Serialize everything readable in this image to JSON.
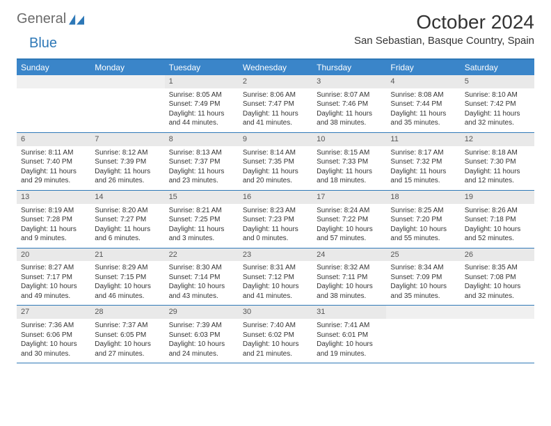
{
  "brand": {
    "word1": "General",
    "word2": "Blue"
  },
  "title": "October 2024",
  "location": "San Sebastian, Basque Country, Spain",
  "colors": {
    "header_bar": "#3a85c9",
    "border": "#2e78b7",
    "daynum_bg": "#e9e9e9",
    "text": "#333333",
    "logo_gray": "#6a6a6a",
    "logo_blue": "#2e78b7",
    "background": "#ffffff"
  },
  "weekdays": [
    "Sunday",
    "Monday",
    "Tuesday",
    "Wednesday",
    "Thursday",
    "Friday",
    "Saturday"
  ],
  "weeks": [
    [
      {
        "day": "",
        "sunrise": "",
        "sunset": "",
        "daylight": ""
      },
      {
        "day": "",
        "sunrise": "",
        "sunset": "",
        "daylight": ""
      },
      {
        "day": "1",
        "sunrise": "Sunrise: 8:05 AM",
        "sunset": "Sunset: 7:49 PM",
        "daylight": "Daylight: 11 hours and 44 minutes."
      },
      {
        "day": "2",
        "sunrise": "Sunrise: 8:06 AM",
        "sunset": "Sunset: 7:47 PM",
        "daylight": "Daylight: 11 hours and 41 minutes."
      },
      {
        "day": "3",
        "sunrise": "Sunrise: 8:07 AM",
        "sunset": "Sunset: 7:46 PM",
        "daylight": "Daylight: 11 hours and 38 minutes."
      },
      {
        "day": "4",
        "sunrise": "Sunrise: 8:08 AM",
        "sunset": "Sunset: 7:44 PM",
        "daylight": "Daylight: 11 hours and 35 minutes."
      },
      {
        "day": "5",
        "sunrise": "Sunrise: 8:10 AM",
        "sunset": "Sunset: 7:42 PM",
        "daylight": "Daylight: 11 hours and 32 minutes."
      }
    ],
    [
      {
        "day": "6",
        "sunrise": "Sunrise: 8:11 AM",
        "sunset": "Sunset: 7:40 PM",
        "daylight": "Daylight: 11 hours and 29 minutes."
      },
      {
        "day": "7",
        "sunrise": "Sunrise: 8:12 AM",
        "sunset": "Sunset: 7:39 PM",
        "daylight": "Daylight: 11 hours and 26 minutes."
      },
      {
        "day": "8",
        "sunrise": "Sunrise: 8:13 AM",
        "sunset": "Sunset: 7:37 PM",
        "daylight": "Daylight: 11 hours and 23 minutes."
      },
      {
        "day": "9",
        "sunrise": "Sunrise: 8:14 AM",
        "sunset": "Sunset: 7:35 PM",
        "daylight": "Daylight: 11 hours and 20 minutes."
      },
      {
        "day": "10",
        "sunrise": "Sunrise: 8:15 AM",
        "sunset": "Sunset: 7:33 PM",
        "daylight": "Daylight: 11 hours and 18 minutes."
      },
      {
        "day": "11",
        "sunrise": "Sunrise: 8:17 AM",
        "sunset": "Sunset: 7:32 PM",
        "daylight": "Daylight: 11 hours and 15 minutes."
      },
      {
        "day": "12",
        "sunrise": "Sunrise: 8:18 AM",
        "sunset": "Sunset: 7:30 PM",
        "daylight": "Daylight: 11 hours and 12 minutes."
      }
    ],
    [
      {
        "day": "13",
        "sunrise": "Sunrise: 8:19 AM",
        "sunset": "Sunset: 7:28 PM",
        "daylight": "Daylight: 11 hours and 9 minutes."
      },
      {
        "day": "14",
        "sunrise": "Sunrise: 8:20 AM",
        "sunset": "Sunset: 7:27 PM",
        "daylight": "Daylight: 11 hours and 6 minutes."
      },
      {
        "day": "15",
        "sunrise": "Sunrise: 8:21 AM",
        "sunset": "Sunset: 7:25 PM",
        "daylight": "Daylight: 11 hours and 3 minutes."
      },
      {
        "day": "16",
        "sunrise": "Sunrise: 8:23 AM",
        "sunset": "Sunset: 7:23 PM",
        "daylight": "Daylight: 11 hours and 0 minutes."
      },
      {
        "day": "17",
        "sunrise": "Sunrise: 8:24 AM",
        "sunset": "Sunset: 7:22 PM",
        "daylight": "Daylight: 10 hours and 57 minutes."
      },
      {
        "day": "18",
        "sunrise": "Sunrise: 8:25 AM",
        "sunset": "Sunset: 7:20 PM",
        "daylight": "Daylight: 10 hours and 55 minutes."
      },
      {
        "day": "19",
        "sunrise": "Sunrise: 8:26 AM",
        "sunset": "Sunset: 7:18 PM",
        "daylight": "Daylight: 10 hours and 52 minutes."
      }
    ],
    [
      {
        "day": "20",
        "sunrise": "Sunrise: 8:27 AM",
        "sunset": "Sunset: 7:17 PM",
        "daylight": "Daylight: 10 hours and 49 minutes."
      },
      {
        "day": "21",
        "sunrise": "Sunrise: 8:29 AM",
        "sunset": "Sunset: 7:15 PM",
        "daylight": "Daylight: 10 hours and 46 minutes."
      },
      {
        "day": "22",
        "sunrise": "Sunrise: 8:30 AM",
        "sunset": "Sunset: 7:14 PM",
        "daylight": "Daylight: 10 hours and 43 minutes."
      },
      {
        "day": "23",
        "sunrise": "Sunrise: 8:31 AM",
        "sunset": "Sunset: 7:12 PM",
        "daylight": "Daylight: 10 hours and 41 minutes."
      },
      {
        "day": "24",
        "sunrise": "Sunrise: 8:32 AM",
        "sunset": "Sunset: 7:11 PM",
        "daylight": "Daylight: 10 hours and 38 minutes."
      },
      {
        "day": "25",
        "sunrise": "Sunrise: 8:34 AM",
        "sunset": "Sunset: 7:09 PM",
        "daylight": "Daylight: 10 hours and 35 minutes."
      },
      {
        "day": "26",
        "sunrise": "Sunrise: 8:35 AM",
        "sunset": "Sunset: 7:08 PM",
        "daylight": "Daylight: 10 hours and 32 minutes."
      }
    ],
    [
      {
        "day": "27",
        "sunrise": "Sunrise: 7:36 AM",
        "sunset": "Sunset: 6:06 PM",
        "daylight": "Daylight: 10 hours and 30 minutes."
      },
      {
        "day": "28",
        "sunrise": "Sunrise: 7:37 AM",
        "sunset": "Sunset: 6:05 PM",
        "daylight": "Daylight: 10 hours and 27 minutes."
      },
      {
        "day": "29",
        "sunrise": "Sunrise: 7:39 AM",
        "sunset": "Sunset: 6:03 PM",
        "daylight": "Daylight: 10 hours and 24 minutes."
      },
      {
        "day": "30",
        "sunrise": "Sunrise: 7:40 AM",
        "sunset": "Sunset: 6:02 PM",
        "daylight": "Daylight: 10 hours and 21 minutes."
      },
      {
        "day": "31",
        "sunrise": "Sunrise: 7:41 AM",
        "sunset": "Sunset: 6:01 PM",
        "daylight": "Daylight: 10 hours and 19 minutes."
      },
      {
        "day": "",
        "sunrise": "",
        "sunset": "",
        "daylight": ""
      },
      {
        "day": "",
        "sunrise": "",
        "sunset": "",
        "daylight": ""
      }
    ]
  ]
}
